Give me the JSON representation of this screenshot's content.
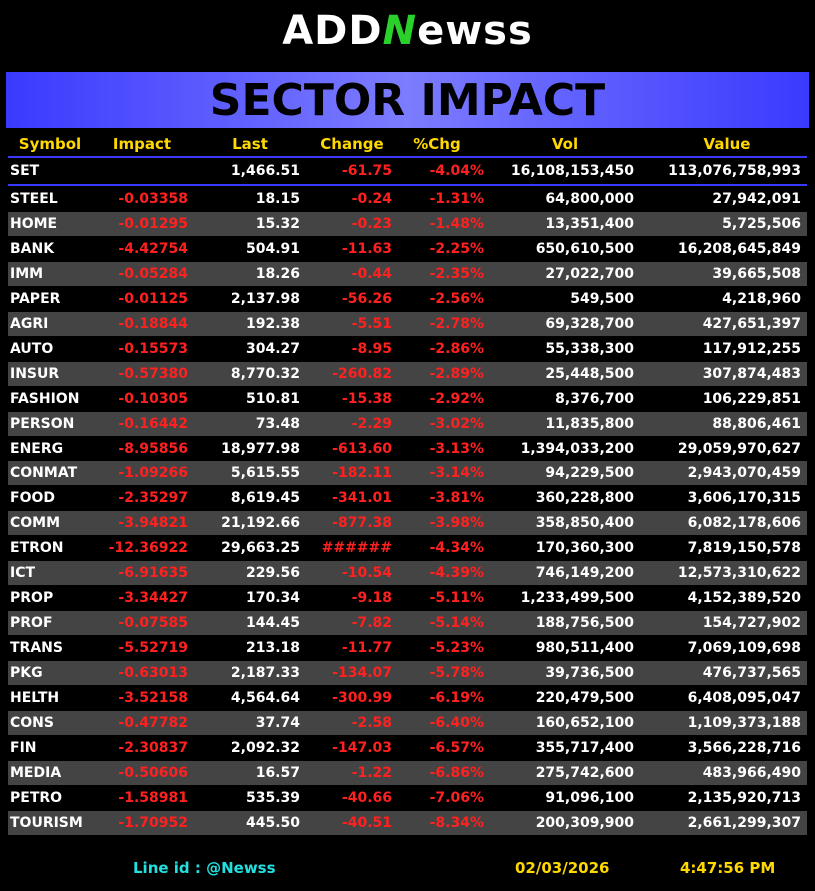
{
  "logo": {
    "left": "ADD",
    "mark": "N",
    "right": "ewss"
  },
  "title": "SECTOR IMPACT",
  "table": {
    "columns": [
      "Symbol",
      "Impact",
      "Last",
      "Change",
      "%Chg",
      "Vol",
      "Value"
    ],
    "set_row": {
      "symbol": "SET",
      "last": "1,466.51",
      "change": "-61.75",
      "pct": "-4.04%",
      "vol": "16,108,153,450",
      "value": "113,076,758,993"
    },
    "rows": [
      [
        "STEEL",
        "-0.03358",
        "18.15",
        "-0.24",
        "-1.31%",
        "64,800,000",
        "27,942,091"
      ],
      [
        "HOME",
        "-0.01295",
        "15.32",
        "-0.23",
        "-1.48%",
        "13,351,400",
        "5,725,506"
      ],
      [
        "BANK",
        "-4.42754",
        "504.91",
        "-11.63",
        "-2.25%",
        "650,610,500",
        "16,208,645,849"
      ],
      [
        "IMM",
        "-0.05284",
        "18.26",
        "-0.44",
        "-2.35%",
        "27,022,700",
        "39,665,508"
      ],
      [
        "PAPER",
        "-0.01125",
        "2,137.98",
        "-56.26",
        "-2.56%",
        "549,500",
        "4,218,960"
      ],
      [
        "AGRI",
        "-0.18844",
        "192.38",
        "-5.51",
        "-2.78%",
        "69,328,700",
        "427,651,397"
      ],
      [
        "AUTO",
        "-0.15573",
        "304.27",
        "-8.95",
        "-2.86%",
        "55,338,300",
        "117,912,255"
      ],
      [
        "INSUR",
        "-0.57380",
        "8,770.32",
        "-260.82",
        "-2.89%",
        "25,448,500",
        "307,874,483"
      ],
      [
        "FASHION",
        "-0.10305",
        "510.81",
        "-15.38",
        "-2.92%",
        "8,376,700",
        "106,229,851"
      ],
      [
        "PERSON",
        "-0.16442",
        "73.48",
        "-2.29",
        "-3.02%",
        "11,835,800",
        "88,806,461"
      ],
      [
        "ENERG",
        "-8.95856",
        "18,977.98",
        "-613.60",
        "-3.13%",
        "1,394,033,200",
        "29,059,970,627"
      ],
      [
        "CONMAT",
        "-1.09266",
        "5,615.55",
        "-182.11",
        "-3.14%",
        "94,229,500",
        "2,943,070,459"
      ],
      [
        "FOOD",
        "-2.35297",
        "8,619.45",
        "-341.01",
        "-3.81%",
        "360,228,800",
        "3,606,170,315"
      ],
      [
        "COMM",
        "-3.94821",
        "21,192.66",
        "-877.38",
        "-3.98%",
        "358,850,400",
        "6,082,178,606"
      ],
      [
        "ETRON",
        "-12.36922",
        "29,663.25",
        "######",
        "-4.34%",
        "170,360,300",
        "7,819,150,578"
      ],
      [
        "ICT",
        "-6.91635",
        "229.56",
        "-10.54",
        "-4.39%",
        "746,149,200",
        "12,573,310,622"
      ],
      [
        "PROP",
        "-3.34427",
        "170.34",
        "-9.18",
        "-5.11%",
        "1,233,499,500",
        "4,152,389,520"
      ],
      [
        "PROF",
        "-0.07585",
        "144.45",
        "-7.82",
        "-5.14%",
        "188,756,500",
        "154,727,902"
      ],
      [
        "TRANS",
        "-5.52719",
        "213.18",
        "-11.77",
        "-5.23%",
        "980,511,400",
        "7,069,109,698"
      ],
      [
        "PKG",
        "-0.63013",
        "2,187.33",
        "-134.07",
        "-5.78%",
        "39,736,500",
        "476,737,565"
      ],
      [
        "HELTH",
        "-3.52158",
        "4,564.64",
        "-300.99",
        "-6.19%",
        "220,479,500",
        "6,408,095,047"
      ],
      [
        "CONS",
        "-0.47782",
        "37.74",
        "-2.58",
        "-6.40%",
        "160,652,100",
        "1,109,373,188"
      ],
      [
        "FIN",
        "-2.30837",
        "2,092.32",
        "-147.03",
        "-6.57%",
        "355,717,400",
        "3,566,228,716"
      ],
      [
        "MEDIA",
        "-0.50606",
        "16.57",
        "-1.22",
        "-6.86%",
        "275,742,600",
        "483,966,490"
      ],
      [
        "PETRO",
        "-1.58981",
        "535.39",
        "-40.66",
        "-7.06%",
        "91,096,100",
        "2,135,920,713"
      ],
      [
        "TOURISM",
        "-1.70952",
        "445.50",
        "-40.51",
        "-8.34%",
        "200,309,900",
        "2,661,299,307"
      ]
    ]
  },
  "footer": {
    "line": "Line id  : @Newss",
    "date": "02/03/2026",
    "time": "4:47:56 PM"
  }
}
